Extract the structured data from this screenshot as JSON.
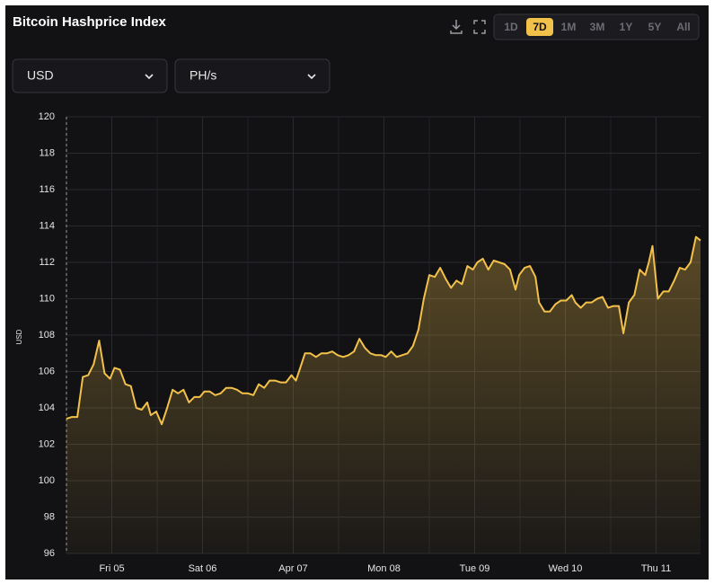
{
  "title": "Bitcoin Hashprice Index",
  "range_buttons": [
    "1D",
    "7D",
    "1M",
    "3M",
    "1Y",
    "5Y",
    "All"
  ],
  "active_range": "7D",
  "dropdowns": [
    "USD",
    "PH/s"
  ],
  "chart_data": {
    "type": "line",
    "ylabel": "USD",
    "color": "#f2c14a",
    "area": true,
    "grid": true,
    "x": [
      4.5,
      4.56,
      4.62,
      4.68,
      4.74,
      4.8,
      4.86,
      4.92,
      4.98,
      5.03,
      5.09,
      5.15,
      5.21,
      5.27,
      5.33,
      5.39,
      5.43,
      5.49,
      5.55,
      5.61,
      5.67,
      5.73,
      5.79,
      5.85,
      5.91,
      5.97,
      6.02,
      6.08,
      6.14,
      6.2,
      6.26,
      6.32,
      6.38,
      6.44,
      6.5,
      6.56,
      6.62,
      6.68,
      6.74,
      6.8,
      6.86,
      6.92,
      6.98,
      7.03,
      7.07,
      7.13,
      7.19,
      7.25,
      7.31,
      7.37,
      7.43,
      7.49,
      7.55,
      7.61,
      7.67,
      7.73,
      7.79,
      7.85,
      7.91,
      7.97,
      8.02,
      8.08,
      8.14,
      8.2,
      8.26,
      8.32,
      8.38,
      8.44,
      8.5,
      8.56,
      8.62,
      8.68,
      8.74,
      8.8,
      8.86,
      8.92,
      8.98,
      9.03,
      9.09,
      9.15,
      9.21,
      9.27,
      9.33,
      9.39,
      9.45,
      9.49,
      9.55,
      9.61,
      9.67,
      9.71,
      9.77,
      9.83,
      9.89,
      9.95,
      10.01,
      10.07,
      10.11,
      10.17,
      10.23,
      10.29,
      10.35,
      10.41,
      10.47,
      10.53,
      10.59,
      10.64,
      10.7,
      10.76,
      10.82,
      10.88,
      10.92,
      10.96,
      11.02,
      11.08,
      11.14,
      11.2,
      11.26,
      11.32,
      11.38,
      11.44,
      11.49
    ],
    "values": [
      103.4,
      103.5,
      103.5,
      105.7,
      105.8,
      106.4,
      107.7,
      105.9,
      105.6,
      106.2,
      106.1,
      105.3,
      105.2,
      104.0,
      103.9,
      104.3,
      103.6,
      103.8,
      103.1,
      104.0,
      105.0,
      104.8,
      105.0,
      104.3,
      104.6,
      104.6,
      104.9,
      104.9,
      104.7,
      104.8,
      105.1,
      105.1,
      105.0,
      104.8,
      104.8,
      104.7,
      105.3,
      105.1,
      105.5,
      105.5,
      105.4,
      105.4,
      105.8,
      105.5,
      106.1,
      107.0,
      107.0,
      106.8,
      107.0,
      107.0,
      107.1,
      106.9,
      106.8,
      106.9,
      107.1,
      107.8,
      107.3,
      107.0,
      106.9,
      106.9,
      106.8,
      107.1,
      106.8,
      106.9,
      107.0,
      107.4,
      108.3,
      110.0,
      111.3,
      111.2,
      111.7,
      111.1,
      110.6,
      111.0,
      110.8,
      111.8,
      111.6,
      112.0,
      112.2,
      111.6,
      112.1,
      112.0,
      111.9,
      111.6,
      110.5,
      111.3,
      111.7,
      111.8,
      111.2,
      109.8,
      109.3,
      109.3,
      109.7,
      109.9,
      109.9,
      110.2,
      109.8,
      109.5,
      109.8,
      109.8,
      110.0,
      110.1,
      109.5,
      109.6,
      109.6,
      108.1,
      109.8,
      110.2,
      111.6,
      111.3,
      112.0,
      112.9,
      110.0,
      110.4,
      110.4,
      111.0,
      111.7,
      111.6,
      112.0,
      113.4,
      113.2
    ],
    "xlim": [
      4.5,
      11.49
    ],
    "xticks": [
      {
        "value": 5,
        "label": "Fri 05"
      },
      {
        "value": 6,
        "label": "Sat 06"
      },
      {
        "value": 7,
        "label": "Apr 07"
      },
      {
        "value": 8,
        "label": "Mon 08"
      },
      {
        "value": 9,
        "label": "Tue 09"
      },
      {
        "value": 10,
        "label": "Wed 10"
      },
      {
        "value": 11,
        "label": "Thu 11"
      }
    ],
    "ylim": [
      96,
      120
    ],
    "yticks": [
      96,
      98,
      100,
      102,
      104,
      106,
      108,
      110,
      112,
      114,
      116,
      118,
      120
    ]
  }
}
